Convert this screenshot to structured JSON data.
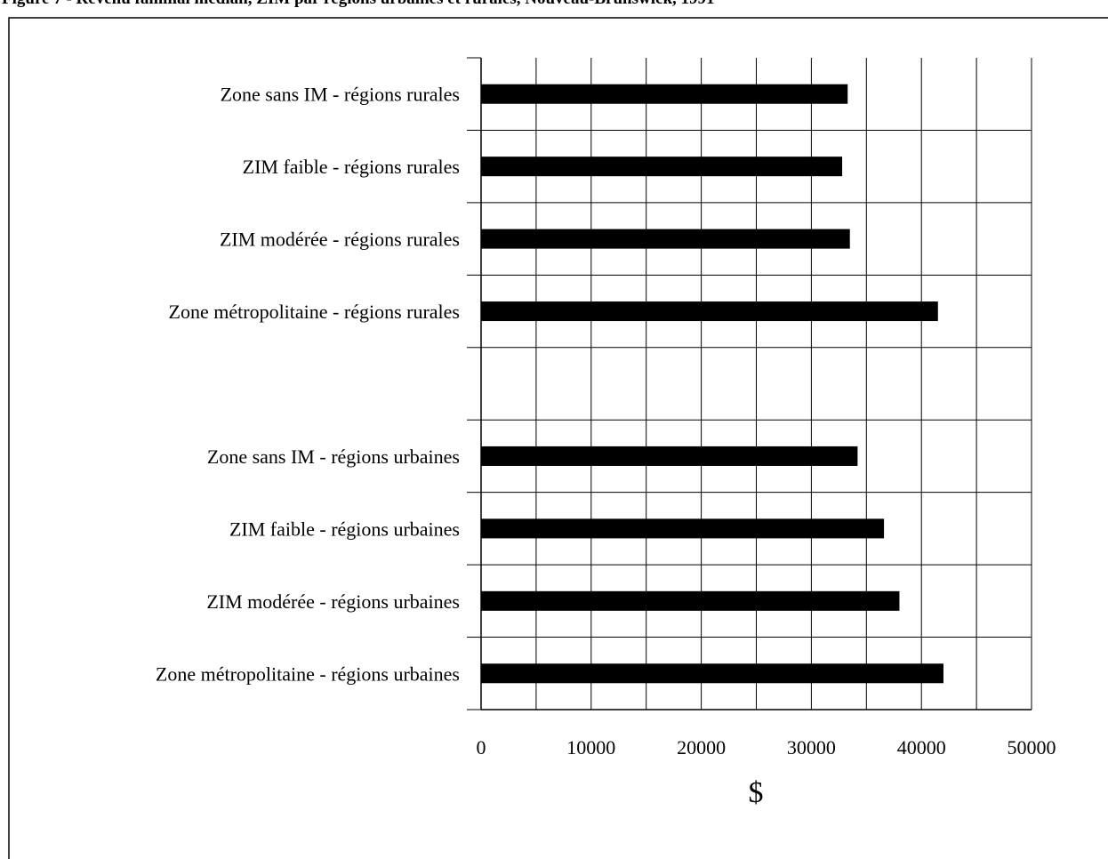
{
  "chart_data": {
    "type": "bar",
    "orientation": "horizontal",
    "title": "Figure 7 - Revenu familial médian, ZIM par régions urbaines et rurales, Nouveau-Brunswick, 1991",
    "xlabel": "$",
    "ylabel": "",
    "xlim": [
      0,
      50000
    ],
    "xticks": [
      0,
      10000,
      20000,
      30000,
      40000,
      50000
    ],
    "grid": true,
    "categories": [
      "Zone sans IM - régions rurales",
      "ZIM faible - régions rurales",
      "ZIM modérée - régions rurales",
      "Zone métropolitaine - régions rurales",
      "",
      "Zone sans IM - régions urbaines",
      "ZIM faible - régions urbaines",
      "ZIM modérée - régions urbaines",
      "Zone métropolitaine - régions urbaines"
    ],
    "values": [
      33300,
      32800,
      33500,
      41500,
      null,
      34200,
      36600,
      38000,
      42000
    ],
    "bar_color": "#000000"
  }
}
